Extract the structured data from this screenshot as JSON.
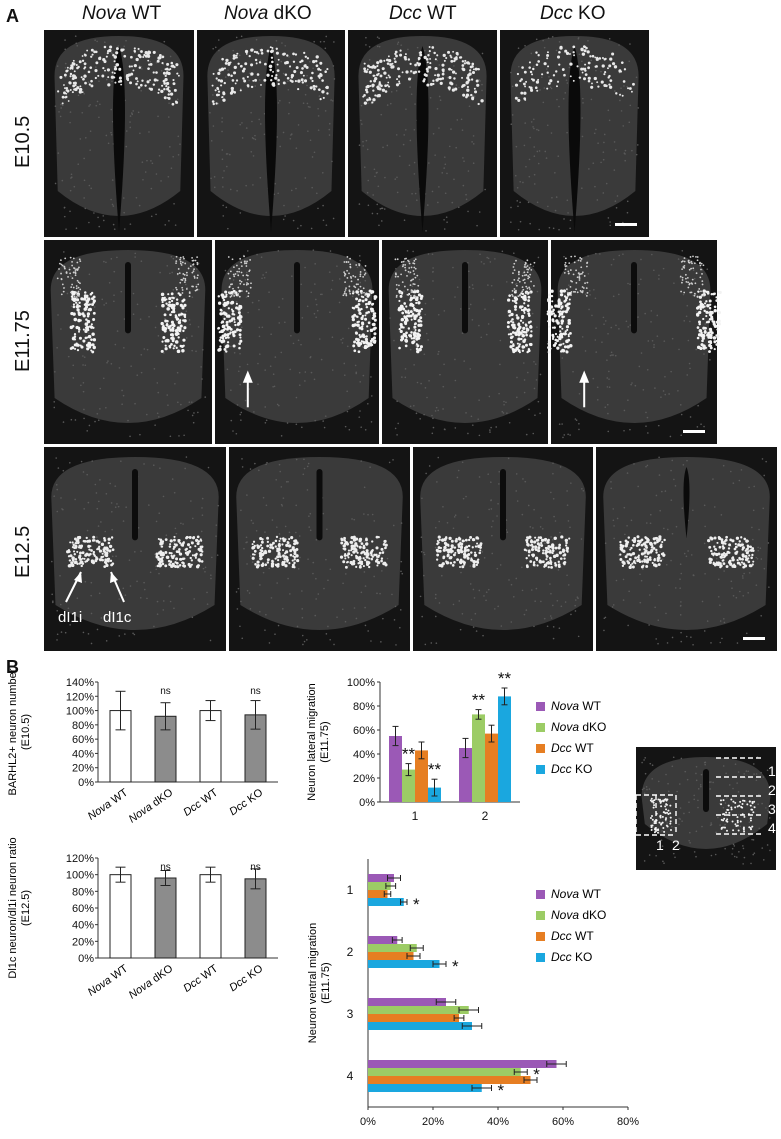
{
  "panel_a": {
    "letter": "A",
    "columns": [
      {
        "gene": "Nova",
        "genotype": "WT"
      },
      {
        "gene": "Nova",
        "genotype": "dKO"
      },
      {
        "gene": "Dcc",
        "genotype": "WT"
      },
      {
        "gene": "Dcc",
        "genotype": "KO"
      }
    ],
    "rows": [
      {
        "label": "E10.5"
      },
      {
        "label": "E11.75"
      },
      {
        "label": "E12.5"
      }
    ],
    "annotations": {
      "dl1i": "dI1i",
      "dl1c": "dI1c"
    }
  },
  "panel_b": {
    "letter": "B",
    "colors": {
      "nova_wt": "#9b59b6",
      "nova_dko": "#9ccc65",
      "dcc_wt": "#e67e22",
      "dcc_ko": "#1aa7df",
      "open_bar": "#ffffff",
      "filled_bar": "#8c8c8c"
    },
    "inset_labels": {
      "band_1": "1",
      "band_2": "2",
      "band_3": "3",
      "band_4": "4",
      "col_1": "1",
      "col_2": "2"
    }
  },
  "chart_data": [
    {
      "type": "bar",
      "ylabel_lines": [
        "BARHL2+ neuron number",
        "(E10.5)"
      ],
      "categories": [
        {
          "gene": "Nova",
          "genotype": "WT"
        },
        {
          "gene": "Nova",
          "genotype": "dKO"
        },
        {
          "gene": "Dcc",
          "genotype": "WT"
        },
        {
          "gene": "Dcc",
          "genotype": "KO"
        }
      ],
      "values": [
        100,
        92,
        100,
        94
      ],
      "errors": [
        27,
        19,
        14,
        20
      ],
      "sig": [
        "",
        "ns",
        "",
        "ns"
      ],
      "ylim": [
        0,
        140
      ],
      "ytick_labels": [
        "0%",
        "20%",
        "40%",
        "60%",
        "80%",
        "100%",
        "120%",
        "140%"
      ]
    },
    {
      "type": "bar",
      "ylabel_lines": [
        "Dl1c neuron/dl1i neuron ratio",
        "(E12.5)"
      ],
      "categories": [
        {
          "gene": "Nova",
          "genotype": "WT"
        },
        {
          "gene": "Nova",
          "genotype": "dKO"
        },
        {
          "gene": "Dcc",
          "genotype": "WT"
        },
        {
          "gene": "Dcc",
          "genotype": "KO"
        }
      ],
      "values": [
        100,
        96,
        100,
        95
      ],
      "errors": [
        9,
        9,
        9,
        12
      ],
      "sig": [
        "",
        "ns",
        "",
        "ns"
      ],
      "ylim": [
        0,
        120
      ],
      "ytick_labels": [
        "0%",
        "20%",
        "40%",
        "60%",
        "80%",
        "100%",
        "120%"
      ]
    },
    {
      "type": "bar",
      "ylabel_lines": [
        "Neuron lateral migration",
        "(E11.75)"
      ],
      "categories": [
        "1",
        "2"
      ],
      "series": [
        {
          "name": {
            "gene": "Nova",
            "genotype": "WT"
          },
          "values": [
            55,
            45
          ],
          "errors": [
            8,
            8
          ],
          "sig": [
            "",
            ""
          ]
        },
        {
          "name": {
            "gene": "Nova",
            "genotype": "dKO"
          },
          "values": [
            27,
            73
          ],
          "errors": [
            5,
            4
          ],
          "sig": [
            "**",
            "**"
          ]
        },
        {
          "name": {
            "gene": "Dcc",
            "genotype": "WT"
          },
          "values": [
            43,
            57
          ],
          "errors": [
            7,
            7
          ],
          "sig": [
            "",
            ""
          ]
        },
        {
          "name": {
            "gene": "Dcc",
            "genotype": "KO"
          },
          "values": [
            12,
            88
          ],
          "errors": [
            7,
            7
          ],
          "sig": [
            "**",
            "**"
          ]
        }
      ],
      "ylim": [
        0,
        100
      ],
      "ytick_labels": [
        "0%",
        "20%",
        "40%",
        "60%",
        "80%",
        "100%"
      ]
    },
    {
      "type": "bar",
      "orientation": "horizontal",
      "ylabel_lines": [
        "Neuron ventral migration",
        "(E11.75)"
      ],
      "categories": [
        "1",
        "2",
        "3",
        "4"
      ],
      "series": [
        {
          "name": {
            "gene": "Nova",
            "genotype": "WT"
          },
          "values": [
            8,
            9,
            24,
            58
          ],
          "errors": [
            2,
            1.5,
            3,
            3
          ],
          "sig": [
            "",
            "",
            "",
            ""
          ]
        },
        {
          "name": {
            "gene": "Nova",
            "genotype": "dKO"
          },
          "values": [
            7,
            15,
            31,
            47
          ],
          "errors": [
            1.5,
            2,
            3,
            2
          ],
          "sig": [
            "",
            "",
            "",
            "*"
          ]
        },
        {
          "name": {
            "gene": "Dcc",
            "genotype": "WT"
          },
          "values": [
            6,
            14,
            28,
            50
          ],
          "errors": [
            1,
            2,
            1.5,
            2
          ],
          "sig": [
            "",
            "",
            "",
            ""
          ]
        },
        {
          "name": {
            "gene": "Dcc",
            "genotype": "KO"
          },
          "values": [
            11,
            22,
            32,
            35
          ],
          "errors": [
            1,
            2,
            3,
            3
          ],
          "sig": [
            "*",
            "*",
            "",
            "*"
          ]
        }
      ],
      "xlim": [
        0,
        80
      ],
      "xtick_labels": [
        "0%",
        "20%",
        "40%",
        "60%",
        "80%"
      ]
    }
  ]
}
